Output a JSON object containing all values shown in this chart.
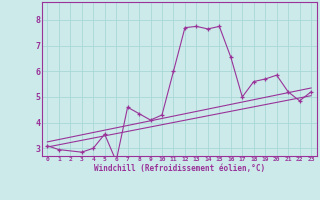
{
  "xlabel": "Windchill (Refroidissement éolien,°C)",
  "bg_color": "#cceaea",
  "line_color": "#993399",
  "grid_color": "#aad8d8",
  "xlim": [
    -0.5,
    23.5
  ],
  "ylim": [
    2.7,
    8.7
  ],
  "yticks": [
    3,
    4,
    5,
    6,
    7,
    8
  ],
  "xticks": [
    0,
    1,
    2,
    3,
    4,
    5,
    6,
    7,
    8,
    9,
    10,
    11,
    12,
    13,
    14,
    15,
    16,
    17,
    18,
    19,
    20,
    21,
    22,
    23
  ],
  "curve1_x": [
    0,
    1,
    3,
    4,
    5,
    6,
    7,
    8,
    9,
    10,
    11,
    12,
    13,
    14,
    15,
    16,
    17,
    18,
    19,
    20,
    21,
    22,
    23
  ],
  "curve1_y": [
    3.1,
    2.95,
    2.85,
    3.0,
    3.55,
    2.5,
    4.6,
    4.35,
    4.1,
    4.3,
    6.0,
    7.7,
    7.75,
    7.65,
    7.75,
    6.55,
    5.0,
    5.6,
    5.7,
    5.85,
    5.2,
    4.85,
    5.2
  ],
  "line1_x": [
    0,
    23
  ],
  "line1_y": [
    3.05,
    5.05
  ],
  "line2_x": [
    0,
    23
  ],
  "line2_y": [
    3.25,
    5.35
  ]
}
